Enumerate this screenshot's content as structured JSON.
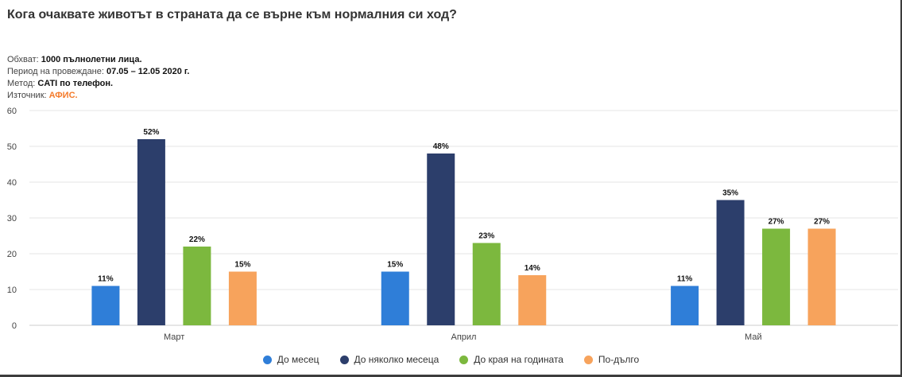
{
  "header": {
    "title": "Кога очаквате животът в страната да се върне към нормалния си ход?",
    "sample_label": "Обхват:",
    "sample_value": "1000 пълнолетни лица.",
    "period_label": "Период на провеждане:",
    "period_value": "07.05 – 12.05 2020 г.",
    "method_label": "Метод:",
    "method_value": "CATI по телефон.",
    "source_label": "Източник:",
    "source_value": "АФИС."
  },
  "colors": {
    "accent": "#f47a2a",
    "grid": "#e6e6e6",
    "axis": "#cccccc"
  },
  "chart_data": {
    "type": "bar",
    "categories": [
      "Март",
      "Април",
      "Май"
    ],
    "series": [
      {
        "name": "До месец",
        "color": "#2f7ed8",
        "values": [
          11,
          15,
          11
        ],
        "labels": [
          "11%",
          "15%",
          "11%"
        ]
      },
      {
        "name": "До няколко месеца",
        "color": "#2c3e6b",
        "values": [
          52,
          48,
          35
        ],
        "labels": [
          "52%",
          "48%",
          "35%"
        ]
      },
      {
        "name": "До края на годината",
        "color": "#7cb83e",
        "values": [
          22,
          23,
          27
        ],
        "labels": [
          "22%",
          "23%",
          "27%"
        ]
      },
      {
        "name": "По-дълго",
        "color": "#f7a35c",
        "values": [
          15,
          14,
          27
        ],
        "labels": [
          "15%",
          "14%",
          "27%"
        ]
      }
    ],
    "yticks": [
      0,
      10,
      20,
      30,
      40,
      50,
      60
    ],
    "ylim": [
      0,
      60
    ],
    "grid": true,
    "legend_position": "bottom"
  }
}
